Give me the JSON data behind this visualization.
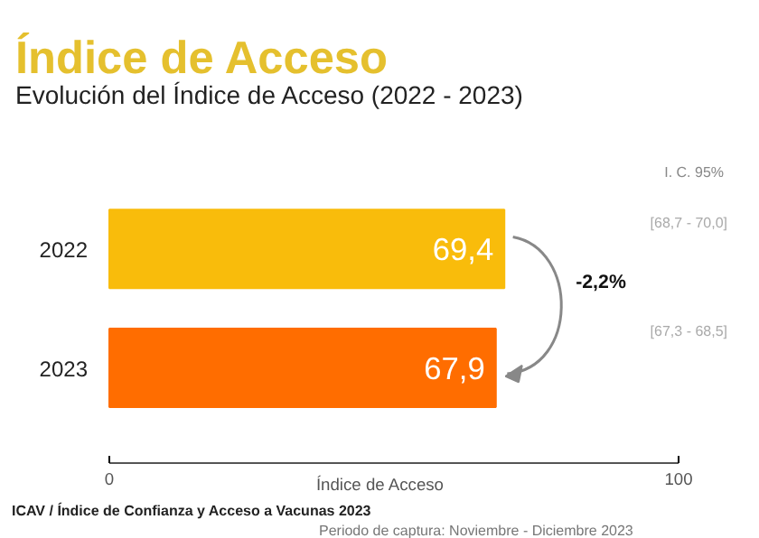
{
  "chart_data": {
    "type": "bar",
    "orientation": "horizontal",
    "title": "Índice de Acceso",
    "subtitle": "Evolución del Índice de Acceso (2022 - 2023)",
    "categories": [
      "2022",
      "2023"
    ],
    "values": [
      69.4,
      67.9
    ],
    "colors": [
      "#f9bc0b",
      "#ff6d00"
    ],
    "value_labels": [
      "69,4",
      "67,9"
    ],
    "xlabel": "Índice de Acceso",
    "xlim": [
      0,
      100
    ],
    "xticks": [
      0,
      100
    ],
    "grid": false,
    "annotations": [
      "I. C. 95%",
      "[68,7 - 70,0]",
      "[67,3 - 68,5]",
      "-2,2%",
      "ICAV / Índice de Confianza y Acceso a Vacunas 2023",
      "Periodo de captura: Noviembre - Diciembre 2023"
    ]
  }
}
